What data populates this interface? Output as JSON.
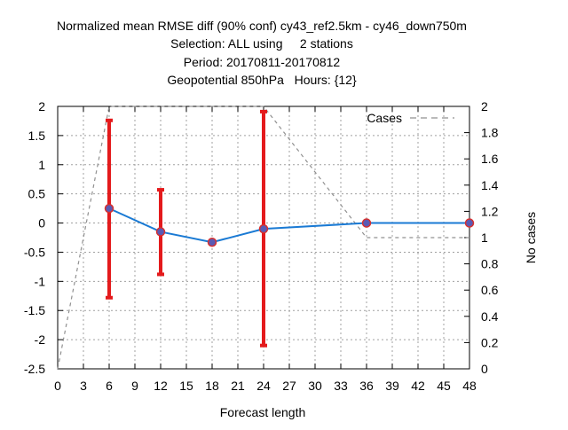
{
  "chart_data": {
    "type": "line",
    "title_lines": [
      "Normalized mean RMSE diff (90% conf) cy43_ref2.5km - cy46_down750m",
      "Selection: ALL using     2 stations",
      "Period: 20170811-20170812",
      "Geopotential 850hPa   Hours: {12}"
    ],
    "xlabel": "Forecast length",
    "ylabel": "",
    "y2label": "No cases",
    "xlim": [
      0,
      48
    ],
    "ylim": [
      -2.5,
      2
    ],
    "y2lim": [
      0,
      2
    ],
    "x_ticks": [
      0,
      3,
      6,
      9,
      12,
      15,
      18,
      21,
      24,
      27,
      30,
      33,
      36,
      39,
      42,
      45,
      48
    ],
    "y_ticks": [
      -2.5,
      -2,
      -1.5,
      -1,
      -0.5,
      0,
      0.5,
      1,
      1.5,
      2
    ],
    "y_tick_labels": [
      "-2.5",
      "-2",
      "-1.5",
      "-1",
      "-0.5",
      "0",
      "0.5",
      "1",
      "1.5",
      "2"
    ],
    "y2_ticks": [
      0,
      0.2,
      0.4,
      0.6,
      0.8,
      1,
      1.2,
      1.4,
      1.6,
      1.8,
      2
    ],
    "y2_tick_labels": [
      "0",
      "0.2",
      "0.4",
      "0.6",
      "0.8",
      "1",
      "1.2",
      "1.4",
      "1.6",
      "1.8",
      "2"
    ],
    "grid": true,
    "legend_position": "top-right",
    "series": [
      {
        "name": "",
        "axis": "y",
        "color": "#1a7ad4",
        "marker_color": "#5a5ab4",
        "x": [
          6,
          12,
          18,
          24,
          36,
          48
        ],
        "y": [
          0.25,
          -0.15,
          -0.33,
          -0.1,
          0.0,
          0.0
        ]
      },
      {
        "name": "Cases",
        "axis": "y2",
        "color": "#909090",
        "dashed": true,
        "x": [
          0,
          6,
          12,
          18,
          24,
          36,
          48
        ],
        "y": [
          0,
          2,
          2,
          2,
          2,
          1,
          1
        ]
      }
    ],
    "error_bars": {
      "color": "#e41a1c",
      "x": [
        6,
        12,
        24
      ],
      "low": [
        -1.28,
        -0.88,
        -2.1
      ],
      "high": [
        1.76,
        0.57,
        1.91
      ]
    }
  }
}
